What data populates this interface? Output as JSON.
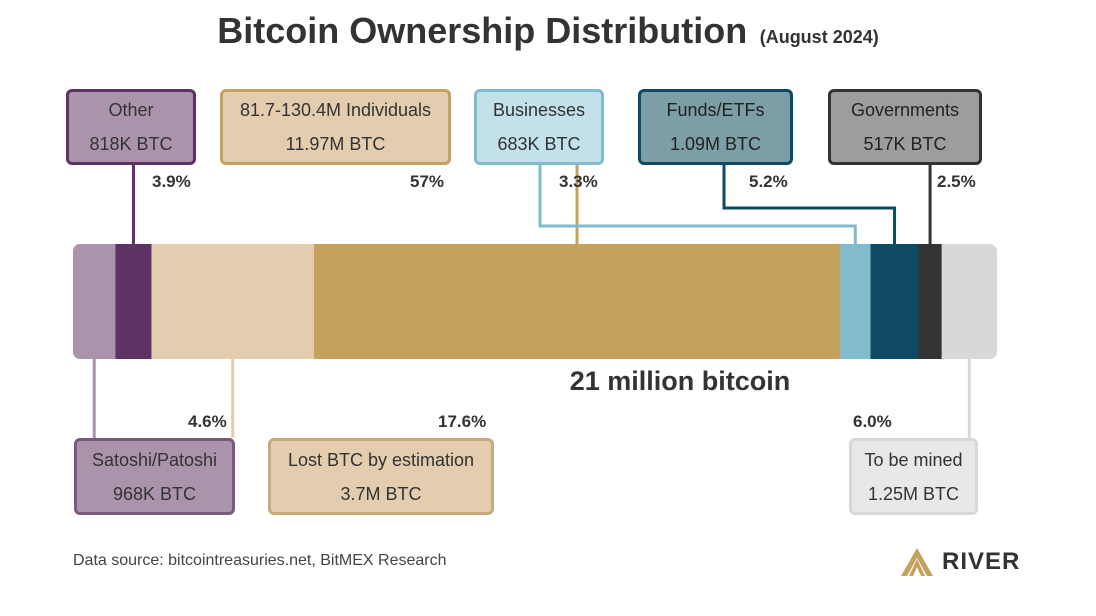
{
  "title": "Bitcoin Ownership Distribution",
  "subtitle": "(August 2024)",
  "center_label": "21 million bitcoin",
  "source": "Data source: bitcointreasuries.net, BitMEX Research",
  "brand": "RIVER",
  "chart_data": {
    "type": "bar",
    "orientation": "horizontal-stacked",
    "total_label": "21 million bitcoin",
    "unit": "% of 21M BTC",
    "segments": [
      {
        "key": "satoshi",
        "name": "Satoshi/Patoshi",
        "btc": "968K BTC",
        "percent": 4.6,
        "percent_label": "4.6%",
        "color": "#ab94ab",
        "box_color": "#ab94ab",
        "border_color": "#7a5a7a",
        "line_color": "#ab94ab",
        "text_color": "#333333",
        "position": "bottom"
      },
      {
        "key": "other",
        "name": "Other",
        "btc": "818K BTC",
        "percent": 3.9,
        "percent_label": "3.9%",
        "color": "#5f3266",
        "box_color": "#ab94ab",
        "border_color": "#5f3266",
        "line_color": "#5f3266",
        "text_color": "#333333",
        "position": "top"
      },
      {
        "key": "lost",
        "name": "Lost BTC by estimation",
        "btc": "3.7M BTC",
        "percent": 17.6,
        "percent_label": "17.6%",
        "color": "#e3cdae",
        "box_color": "#e3cdae",
        "border_color": "#c9aa7c",
        "line_color": "#e3cdae",
        "text_color": "#333333",
        "position": "bottom"
      },
      {
        "key": "individuals",
        "name": "81.7-130.4M Individuals",
        "btc": "11.97M BTC",
        "percent": 57,
        "percent_label": "57%",
        "color": "#c4a25e",
        "box_color": "#e3cdae",
        "border_color": "#c4a25e",
        "line_color": "#c4a25e",
        "text_color": "#333333",
        "position": "top"
      },
      {
        "key": "businesses",
        "name": "Businesses",
        "btc": "683K BTC",
        "percent": 3.3,
        "percent_label": "3.3%",
        "color": "#82bccc",
        "box_color": "#c2e1ea",
        "border_color": "#82bccc",
        "line_color": "#82bccc",
        "text_color": "#333333",
        "position": "top"
      },
      {
        "key": "funds",
        "name": "Funds/ETFs",
        "btc": "1.09M BTC",
        "percent": 5.2,
        "percent_label": "5.2%",
        "color": "#0e4a61",
        "box_color": "#7c9ea6",
        "border_color": "#0e4a61",
        "line_color": "#0e4a61",
        "text_color": "#222222",
        "position": "top"
      },
      {
        "key": "governments",
        "name": "Governments",
        "btc": "517K BTC",
        "percent": 2.5,
        "percent_label": "2.5%",
        "color": "#333333",
        "box_color": "#9d9d9d",
        "border_color": "#333333",
        "line_color": "#333333",
        "text_color": "#222222",
        "position": "top"
      },
      {
        "key": "tobemined",
        "name": "To be mined",
        "btc": "1.25M BTC",
        "percent": 6.0,
        "percent_label": "6.0%",
        "color": "#d8d8d8",
        "box_color": "#e8e8e8",
        "border_color": "#d8d8d8",
        "line_color": "#d8d8d8",
        "text_color": "#333333",
        "position": "bottom"
      }
    ]
  }
}
